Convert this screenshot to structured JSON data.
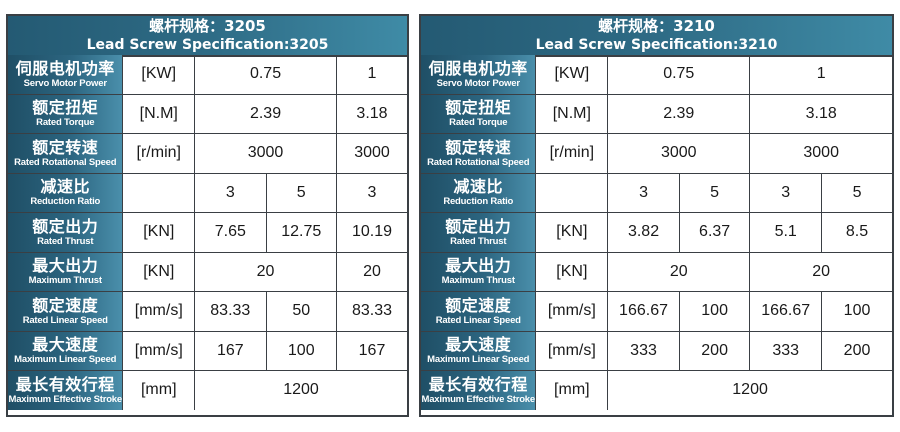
{
  "colors": {
    "header_gradient_start": "#245a73",
    "header_gradient_end": "#3f8ba6",
    "border": "#3a3f44",
    "label_text": "#ffffff"
  },
  "tables": [
    {
      "title_cn": "螺杆规格：3205",
      "title_en": "Lead Screw Specification:3205",
      "rows": [
        {
          "cn": "伺服电机功率",
          "en": "Servo Motor Power",
          "unit": "[KW]",
          "cells": [
            {
              "v": "0.75",
              "span": 2
            },
            {
              "v": "1",
              "span": 1
            }
          ]
        },
        {
          "cn": "额定扭矩",
          "en": "Rated Torque",
          "unit": "[N.M]",
          "cells": [
            {
              "v": "2.39",
              "span": 2
            },
            {
              "v": "3.18",
              "span": 1
            }
          ]
        },
        {
          "cn": "额定转速",
          "en": "Rated Rotational Speed",
          "unit": "[r/min]",
          "cells": [
            {
              "v": "3000",
              "span": 2
            },
            {
              "v": "3000",
              "span": 1
            }
          ]
        },
        {
          "cn": "减速比",
          "en": "Reduction Ratio",
          "unit": "",
          "cells": [
            {
              "v": "3",
              "span": 1
            },
            {
              "v": "5",
              "span": 1
            },
            {
              "v": "3",
              "span": 1
            }
          ]
        },
        {
          "cn": "额定出力",
          "en": "Rated Thrust",
          "unit": "[KN]",
          "cells": [
            {
              "v": "7.65",
              "span": 1
            },
            {
              "v": "12.75",
              "span": 1
            },
            {
              "v": "10.19",
              "span": 1
            }
          ]
        },
        {
          "cn": "最大出力",
          "en": "Maximum Thrust",
          "unit": "[KN]",
          "cells": [
            {
              "v": "20",
              "span": 2
            },
            {
              "v": "20",
              "span": 1
            }
          ]
        },
        {
          "cn": "额定速度",
          "en": "Rated Linear Speed",
          "unit": "[mm/s]",
          "cells": [
            {
              "v": "83.33",
              "span": 1
            },
            {
              "v": "50",
              "span": 1
            },
            {
              "v": "83.33",
              "span": 1
            }
          ]
        },
        {
          "cn": "最大速度",
          "en": "Maximum Linear Speed",
          "unit": "[mm/s]",
          "cells": [
            {
              "v": "167",
              "span": 1
            },
            {
              "v": "100",
              "span": 1
            },
            {
              "v": "167",
              "span": 1
            }
          ]
        },
        {
          "cn": "最长有效行程",
          "en": "Maximum Effective Stroke",
          "unit": "[mm]",
          "cells": [
            {
              "v": "1200",
              "span": 3
            }
          ]
        }
      ]
    },
    {
      "title_cn": "螺杆规格：3210",
      "title_en": "Lead Screw Specification:3210",
      "rows": [
        {
          "cn": "伺服电机功率",
          "en": "Servo Motor Power",
          "unit": "[KW]",
          "cells": [
            {
              "v": "0.75",
              "span": 2
            },
            {
              "v": "1",
              "span": 2
            }
          ]
        },
        {
          "cn": "额定扭矩",
          "en": "Rated Torque",
          "unit": "[N.M]",
          "cells": [
            {
              "v": "2.39",
              "span": 2
            },
            {
              "v": "3.18",
              "span": 2
            }
          ]
        },
        {
          "cn": "额定转速",
          "en": "Rated Rotational Speed",
          "unit": "[r/min]",
          "cells": [
            {
              "v": "3000",
              "span": 2
            },
            {
              "v": "3000",
              "span": 2
            }
          ]
        },
        {
          "cn": "减速比",
          "en": "Reduction Ratio",
          "unit": "",
          "cells": [
            {
              "v": "3",
              "span": 1
            },
            {
              "v": "5",
              "span": 1
            },
            {
              "v": "3",
              "span": 1
            },
            {
              "v": "5",
              "span": 1
            }
          ]
        },
        {
          "cn": "额定出力",
          "en": "Rated Thrust",
          "unit": "[KN]",
          "cells": [
            {
              "v": "3.82",
              "span": 1
            },
            {
              "v": "6.37",
              "span": 1
            },
            {
              "v": "5.1",
              "span": 1
            },
            {
              "v": "8.5",
              "span": 1
            }
          ]
        },
        {
          "cn": "最大出力",
          "en": "Maximum Thrust",
          "unit": "[KN]",
          "cells": [
            {
              "v": "20",
              "span": 2
            },
            {
              "v": "20",
              "span": 2
            }
          ]
        },
        {
          "cn": "额定速度",
          "en": "Rated Linear Speed",
          "unit": "[mm/s]",
          "cells": [
            {
              "v": "166.67",
              "span": 1
            },
            {
              "v": "100",
              "span": 1
            },
            {
              "v": "166.67",
              "span": 1
            },
            {
              "v": "100",
              "span": 1
            }
          ]
        },
        {
          "cn": "最大速度",
          "en": "Maximum Linear Speed",
          "unit": "[mm/s]",
          "cells": [
            {
              "v": "333",
              "span": 1
            },
            {
              "v": "200",
              "span": 1
            },
            {
              "v": "333",
              "span": 1
            },
            {
              "v": "200",
              "span": 1
            }
          ]
        },
        {
          "cn": "最长有效行程",
          "en": "Maximum Effective Stroke",
          "unit": "[mm]",
          "cells": [
            {
              "v": "1200",
              "span": 4
            }
          ]
        }
      ]
    }
  ]
}
